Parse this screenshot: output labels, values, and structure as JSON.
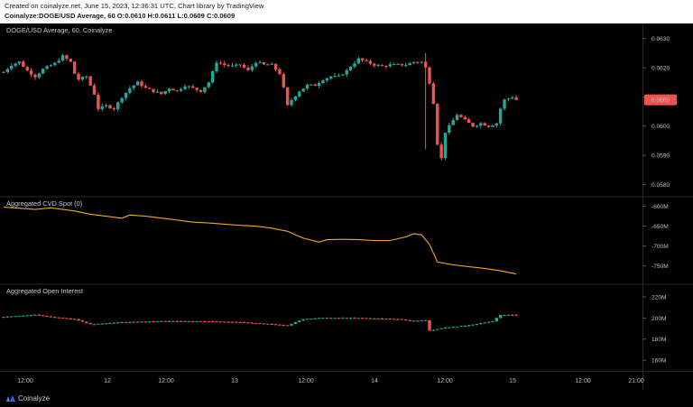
{
  "header": {
    "created": "Created on coinalyze.net, June 15, 2023, 12:36:31 UTC, Chart library by TradingView",
    "symbol_line": "Coinalyze:DOGE/USD Average, 60 O:0.0610 H:0.0611 L:0.0609 C:0.0609"
  },
  "footer": {
    "brand": "Coinalyze"
  },
  "colors": {
    "background": "#000000",
    "up": "#26a69a",
    "down": "#ef5350",
    "cvd_line": "#f5a623",
    "price_tag": "#ef5350"
  },
  "chart_data": [
    {
      "type": "candlestick",
      "title": "DOGE/USD Average, 60, Coinalyze",
      "y_ticks": [
        "0.0630",
        "0.0620",
        "0.0610",
        "0.0600",
        "0.0590",
        "0.0580"
      ],
      "ylim": [
        0.0578,
        0.0633
      ],
      "last_price_label": "0.0609",
      "x_ticks": [
        "12:00",
        "12",
        "12:00",
        "13",
        "12:00",
        "14",
        "12:00",
        "15",
        "12:00",
        "21:00"
      ],
      "close_path": [
        [
          0,
          0.06185
        ],
        [
          2,
          0.0621
        ],
        [
          4,
          0.0622
        ],
        [
          6,
          0.0619
        ],
        [
          8,
          0.0617
        ],
        [
          10,
          0.06195
        ],
        [
          13,
          0.06215
        ],
        [
          15,
          0.0624
        ],
        [
          17,
          0.0622
        ],
        [
          18,
          0.0618
        ],
        [
          19,
          0.0616
        ],
        [
          21,
          0.0617
        ],
        [
          23,
          0.0611
        ],
        [
          24,
          0.0606
        ],
        [
          26,
          0.0607
        ],
        [
          28,
          0.0606
        ],
        [
          30,
          0.061
        ],
        [
          32,
          0.0613
        ],
        [
          34,
          0.0615
        ],
        [
          36,
          0.0613
        ],
        [
          38,
          0.0612
        ],
        [
          40,
          0.0611
        ],
        [
          42,
          0.0613
        ],
        [
          44,
          0.0612
        ],
        [
          46,
          0.0614
        ],
        [
          48,
          0.0613
        ],
        [
          50,
          0.0612
        ],
        [
          52,
          0.0615
        ],
        [
          54,
          0.0622
        ],
        [
          56,
          0.0621
        ],
        [
          58,
          0.06205
        ],
        [
          60,
          0.0621
        ],
        [
          62,
          0.0619
        ],
        [
          64,
          0.0622
        ],
        [
          66,
          0.0621
        ],
        [
          68,
          0.0621
        ],
        [
          70,
          0.0618
        ],
        [
          71,
          0.0613
        ],
        [
          72,
          0.0607
        ],
        [
          73,
          0.0609
        ],
        [
          75,
          0.0612
        ],
        [
          77,
          0.0614
        ],
        [
          79,
          0.0614
        ],
        [
          81,
          0.0616
        ],
        [
          83,
          0.0617
        ],
        [
          85,
          0.0617
        ],
        [
          87,
          0.0619
        ],
        [
          88,
          0.06205
        ],
        [
          90,
          0.0623
        ],
        [
          92,
          0.0622
        ],
        [
          94,
          0.0621
        ],
        [
          96,
          0.06205
        ],
        [
          98,
          0.0621
        ],
        [
          100,
          0.0621
        ],
        [
          102,
          0.0621
        ],
        [
          104,
          0.0622
        ],
        [
          106,
          0.0622
        ],
        [
          107,
          0.062
        ],
        [
          108,
          0.0615
        ],
        [
          109,
          0.0608
        ],
        [
          110,
          0.0594
        ],
        [
          111,
          0.0589
        ],
        [
          112,
          0.0598
        ],
        [
          113,
          0.06
        ],
        [
          115,
          0.0604
        ],
        [
          117,
          0.0602
        ],
        [
          119,
          0.06
        ],
        [
          121,
          0.0601
        ],
        [
          123,
          0.06
        ],
        [
          125,
          0.0601
        ],
        [
          126,
          0.0606
        ],
        [
          127,
          0.0609
        ],
        [
          129,
          0.061
        ],
        [
          130,
          0.0609
        ]
      ],
      "volatility_pct": 0.25
    },
    {
      "type": "line",
      "title": "Aggregated CVD Spot (0)",
      "y_ticks": [
        "-600M",
        "-650M",
        "-700M",
        "-750M"
      ],
      "ylim": [
        -780,
        -592
      ],
      "unit": "M",
      "series": [
        {
          "values": [
            [
              0,
              -602
            ],
            [
              8,
              -608
            ],
            [
              12,
              -604
            ],
            [
              18,
              -612
            ],
            [
              22,
              -620
            ],
            [
              26,
              -625
            ],
            [
              30,
              -630
            ],
            [
              32,
              -622
            ],
            [
              36,
              -625
            ],
            [
              42,
              -632
            ],
            [
              48,
              -640
            ],
            [
              52,
              -642
            ],
            [
              56,
              -645
            ],
            [
              60,
              -648
            ],
            [
              64,
              -650
            ],
            [
              68,
              -655
            ],
            [
              72,
              -663
            ],
            [
              74,
              -672
            ],
            [
              76,
              -680
            ],
            [
              80,
              -690
            ],
            [
              82,
              -684
            ],
            [
              86,
              -683
            ],
            [
              90,
              -684
            ],
            [
              94,
              -686
            ],
            [
              98,
              -686
            ],
            [
              102,
              -677
            ],
            [
              104,
              -669
            ],
            [
              106,
              -672
            ],
            [
              108,
              -696
            ],
            [
              110,
              -740
            ],
            [
              114,
              -747
            ],
            [
              118,
              -752
            ],
            [
              122,
              -756
            ],
            [
              126,
              -762
            ],
            [
              130,
              -770
            ]
          ]
        }
      ]
    },
    {
      "type": "candlestick",
      "title": "Aggregated Open Interest",
      "y_ticks": [
        "220M",
        "200M",
        "180M",
        "160M"
      ],
      "ylim": [
        155,
        226
      ],
      "unit": "M",
      "close_path": [
        [
          0,
          201
        ],
        [
          8,
          203
        ],
        [
          12,
          201
        ],
        [
          18,
          199
        ],
        [
          22,
          194
        ],
        [
          30,
          196
        ],
        [
          40,
          197
        ],
        [
          50,
          197
        ],
        [
          60,
          196
        ],
        [
          68,
          194
        ],
        [
          72,
          193
        ],
        [
          76,
          199
        ],
        [
          80,
          200
        ],
        [
          90,
          200
        ],
        [
          100,
          199
        ],
        [
          104,
          197
        ],
        [
          107,
          198
        ],
        [
          108,
          188
        ],
        [
          112,
          191
        ],
        [
          118,
          193
        ],
        [
          124,
          197
        ],
        [
          126,
          203
        ],
        [
          130,
          203
        ]
      ],
      "volatility_pct": 0.6
    }
  ]
}
